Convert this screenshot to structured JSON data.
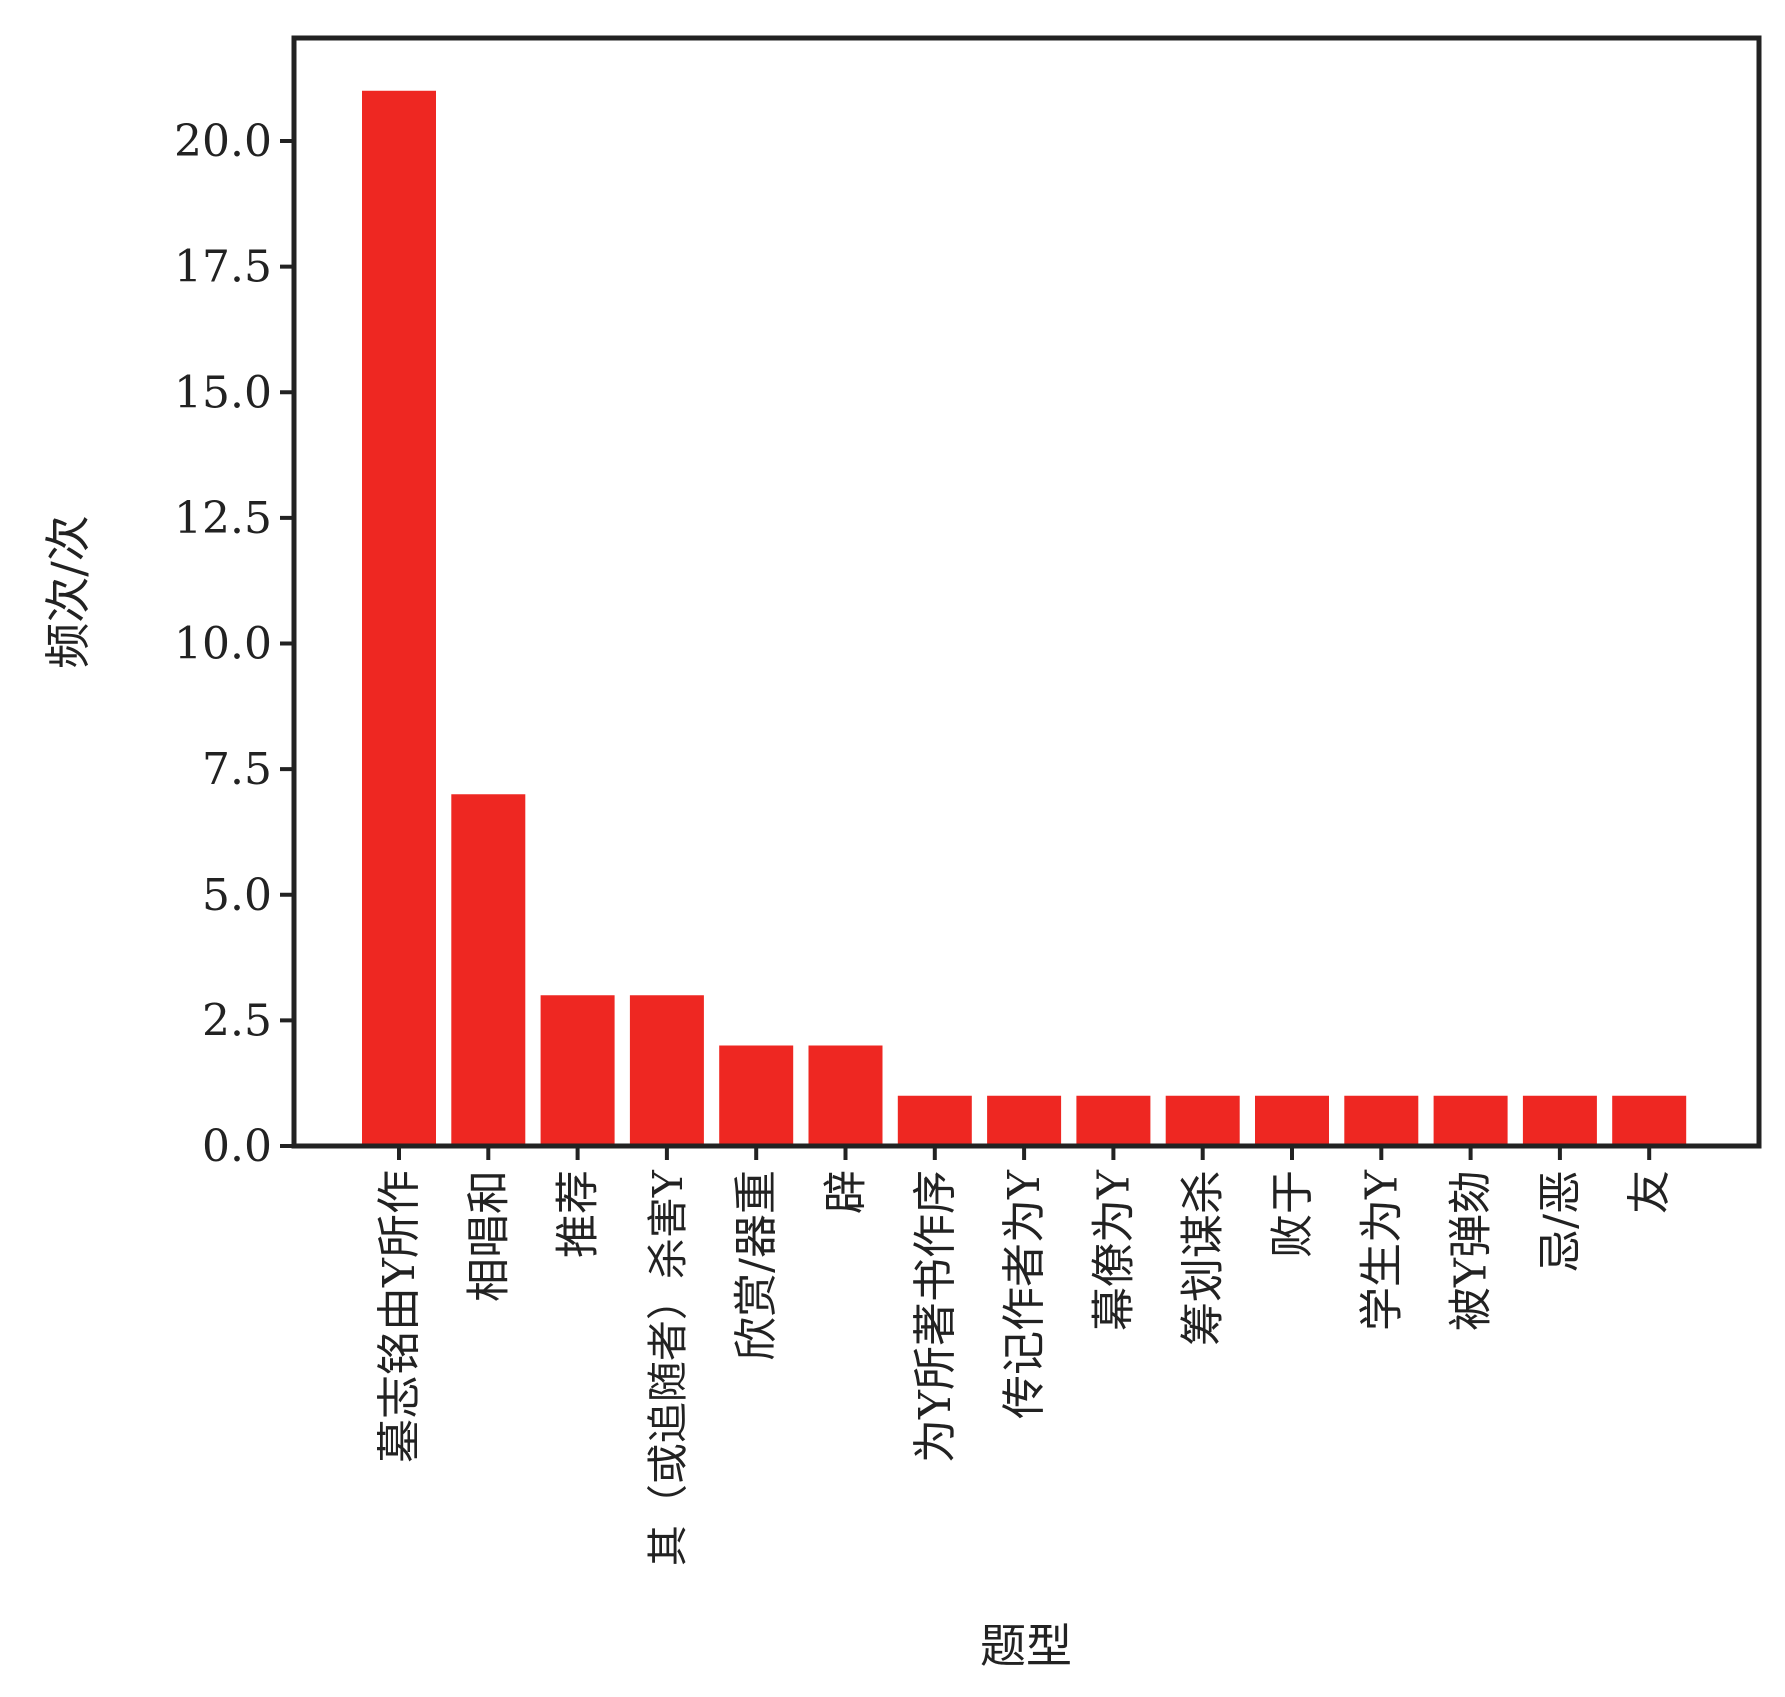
{
  "colors": {
    "bar": "#ee2722",
    "axis": "#222222",
    "text": "#222222",
    "background": "#ffffff"
  },
  "chart_data": {
    "type": "bar",
    "xlabel": "题型",
    "ylabel": "频次/次",
    "ylim": [
      0,
      22.05
    ],
    "yticks": [
      "0.0",
      "2.5",
      "5.0",
      "7.5",
      "10.0",
      "12.5",
      "15.0",
      "17.5",
      "20.0"
    ],
    "grid": false,
    "legend": "none",
    "categories": [
      "墓志铭由Y所作",
      "相唱和",
      "推荐",
      "其（或追随者）杀害Y",
      "欣赏/器重",
      "辟",
      "为Y所著书作序",
      "传记作者为Y",
      "幕僚为Y",
      "筹划谋杀",
      "败于",
      "学生为Y",
      "被Y弹劾",
      "忌/恶",
      "友"
    ],
    "values": [
      21,
      7,
      3,
      3,
      2,
      2,
      1,
      1,
      1,
      1,
      1,
      1,
      1,
      1,
      1
    ]
  }
}
